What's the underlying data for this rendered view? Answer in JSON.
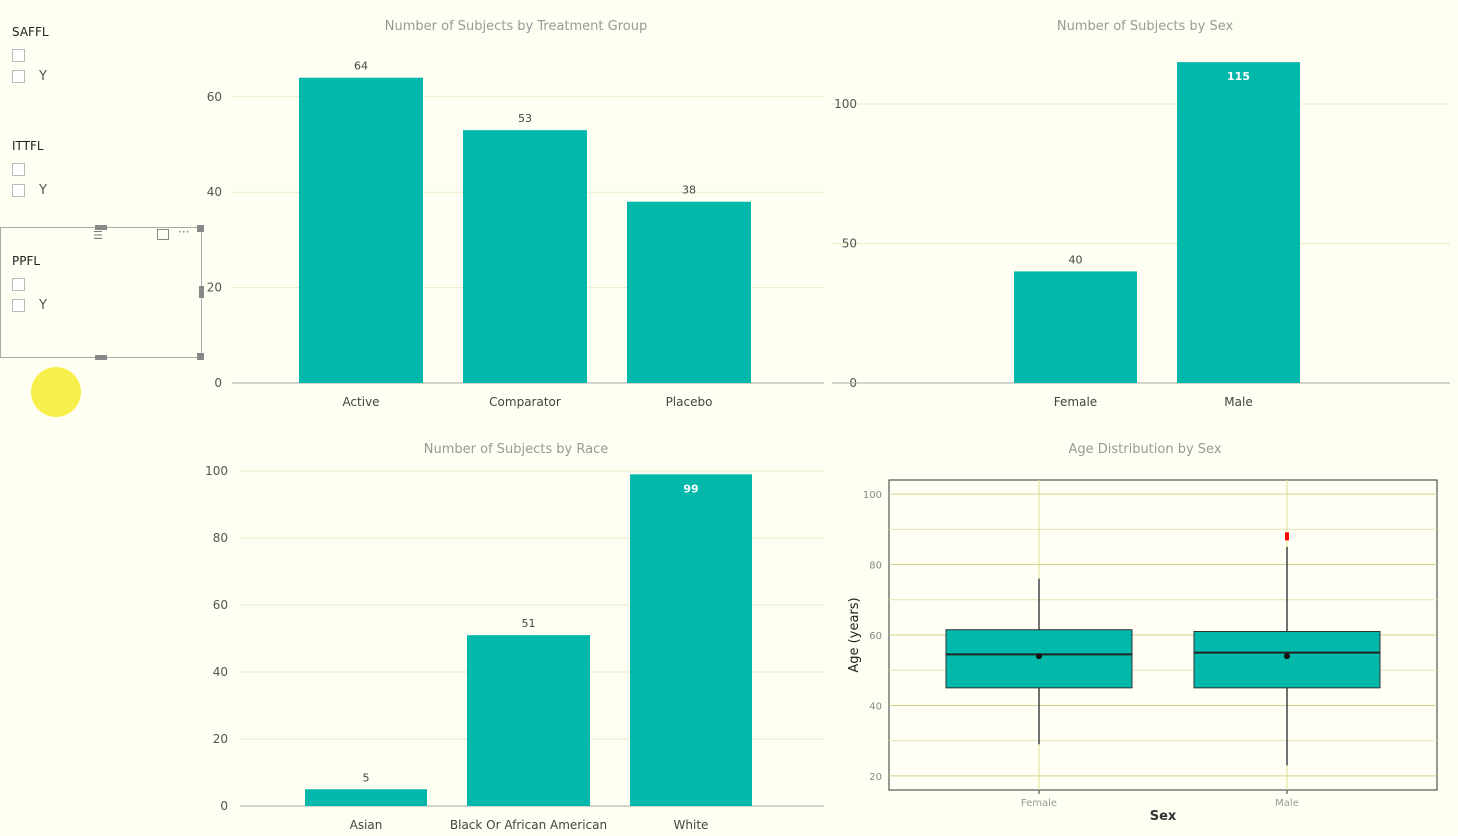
{
  "slicers": [
    {
      "title": "SAFFL",
      "options": [
        "",
        "Y"
      ]
    },
    {
      "title": "ITTFL",
      "options": [
        "",
        "Y"
      ]
    },
    {
      "title": "PPFL",
      "options": [
        "",
        "Y"
      ]
    }
  ],
  "visual_header": {
    "icons": [
      "drag-handle-icon",
      "focus-mode-icon",
      "more-options-icon"
    ]
  },
  "colors": {
    "bar": "#01b8aa",
    "outlier": "#ff0000"
  },
  "chart_data": [
    {
      "type": "bar",
      "title": "Number of Subjects by Treatment Group",
      "categories": [
        "Active",
        "Comparator",
        "Placebo"
      ],
      "values": [
        64,
        53,
        38
      ],
      "yticks": [
        0,
        20,
        40,
        60
      ],
      "ylim": [
        0,
        66
      ],
      "grid": true
    },
    {
      "type": "bar",
      "title": "Number of Subjects by Sex",
      "categories": [
        "Female",
        "Male"
      ],
      "values": [
        40,
        115
      ],
      "yticks": [
        0,
        50,
        100
      ],
      "ylim": [
        0,
        118
      ],
      "grid": true
    },
    {
      "type": "bar",
      "title": "Number of Subjects by Race",
      "categories": [
        "Asian",
        "Black Or African American",
        "White"
      ],
      "values": [
        5,
        51,
        99
      ],
      "yticks": [
        0,
        20,
        40,
        60,
        80,
        100
      ],
      "ylim": [
        0,
        100
      ],
      "grid": true
    },
    {
      "type": "boxplot",
      "title": "Age Distribution by Sex",
      "xlabel": "Sex",
      "ylabel": "Age (years)",
      "categories": [
        "Female",
        "Male"
      ],
      "yticks": [
        20,
        40,
        60,
        80,
        100
      ],
      "ylim": [
        16,
        104
      ],
      "grid": true,
      "boxes": [
        {
          "whisker_low": 29,
          "q1": 45,
          "median": 54.5,
          "q3": 61.5,
          "whisker_high": 76,
          "mean": 54,
          "outliers": []
        },
        {
          "whisker_low": 23,
          "q1": 45,
          "median": 55,
          "q3": 61,
          "whisker_high": 85,
          "mean": 54,
          "outliers": [
            88
          ]
        }
      ]
    }
  ]
}
